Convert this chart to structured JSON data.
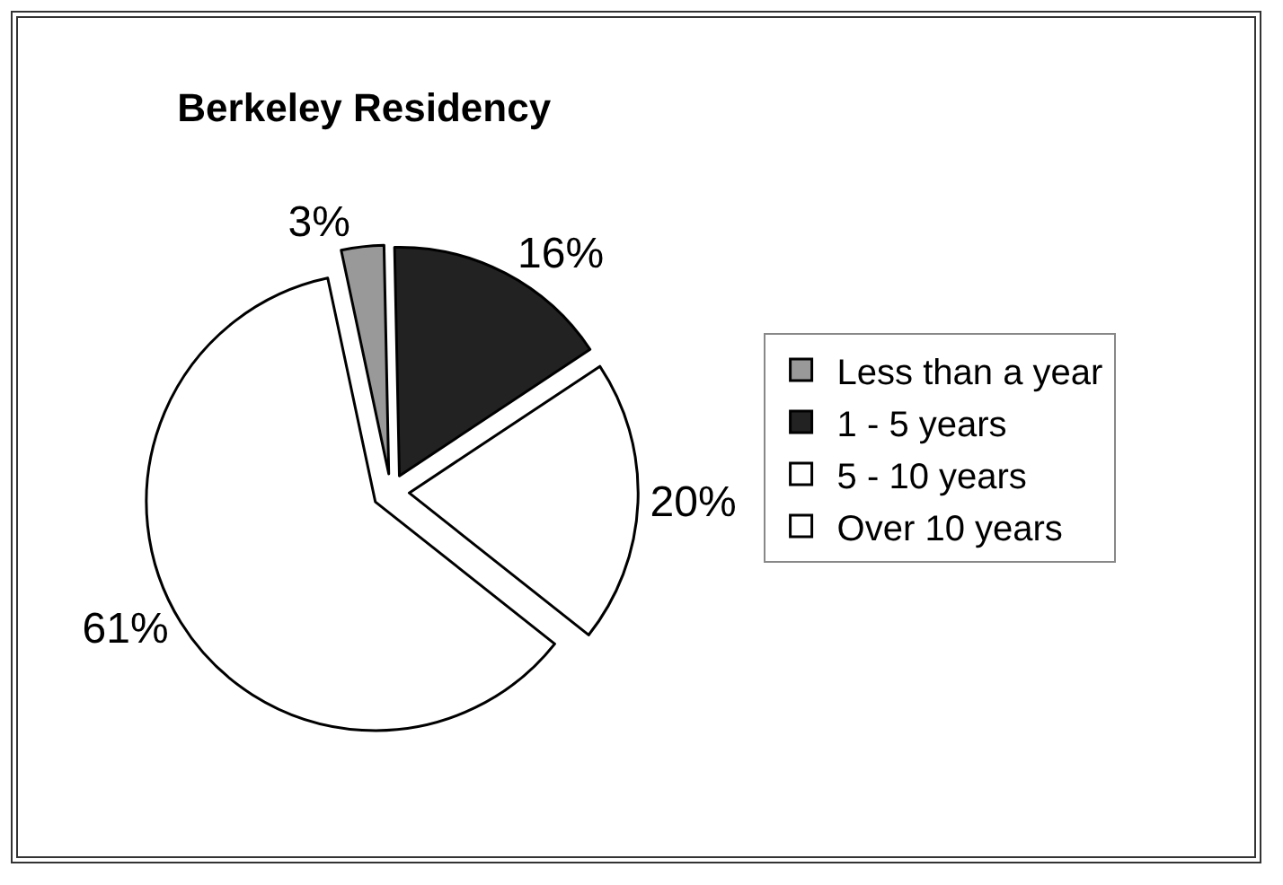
{
  "chart_data": {
    "type": "pie",
    "title": "Berkeley Residency",
    "categories": [
      "Less than a year",
      "1 - 5 years",
      "5 - 10 years",
      "Over 10 years"
    ],
    "values": [
      3,
      16,
      20,
      61
    ],
    "value_labels": [
      "3%",
      "16%",
      "20%",
      "61%"
    ],
    "colors": [
      "#999999",
      "#222222",
      "#ffffff",
      "#ffffff"
    ],
    "legend": "right"
  }
}
